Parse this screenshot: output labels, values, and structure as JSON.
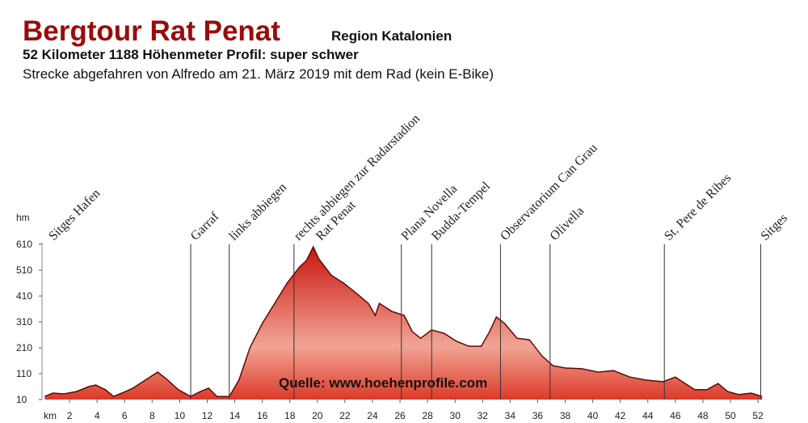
{
  "chart_data": {
    "type": "area",
    "title": "Bergtour Rat Penat",
    "subtitle": "Region Katalonien",
    "line2": "52 Kilometer  1188 Höhenmeter  Profil: super schwer",
    "line3": "Strecke abgefahren von Alfredo am 21. März 2019 mit dem Rad (kein E-Bike)",
    "source": "Quelle: www.hoehenprofile.com",
    "xlabel": "km",
    "ylabel": "hm",
    "color": "#c8150f",
    "xlim": [
      0,
      52.5
    ],
    "ylim": [
      10,
      610
    ],
    "xticks": [
      2,
      4,
      6,
      8,
      10,
      12,
      14,
      16,
      18,
      20,
      22,
      24,
      26,
      28,
      30,
      32,
      34,
      36,
      38,
      40,
      42,
      44,
      46,
      48,
      50,
      52
    ],
    "yticks": [
      10,
      110,
      210,
      310,
      410,
      510,
      610
    ],
    "x": [
      0.2,
      0.8,
      1.6,
      2.5,
      3.4,
      3.9,
      4.6,
      5.2,
      5.8,
      6.6,
      7.5,
      8.4,
      9.0,
      9.9,
      10.8,
      11.5,
      12.1,
      12.7,
      13.6,
      14.3,
      15.1,
      16.0,
      16.9,
      17.8,
      18.7,
      19.2,
      19.7,
      20.1,
      21.0,
      21.9,
      22.8,
      23.7,
      24.2,
      24.5,
      25.4,
      26.3,
      26.9,
      27.5,
      28.3,
      29.2,
      30.1,
      31.0,
      31.9,
      32.5,
      33.0,
      33.6,
      34.5,
      35.4,
      36.3,
      37.1,
      38.0,
      39.2,
      40.4,
      41.5,
      42.7,
      43.9,
      45.1,
      46.0,
      46.5,
      47.4,
      48.3,
      49.1,
      49.8,
      50.6,
      51.5,
      52.3
    ],
    "values": [
      22,
      35,
      32,
      41,
      60,
      66,
      48,
      22,
      35,
      54,
      85,
      116,
      91,
      48,
      22,
      41,
      54,
      22,
      22,
      85,
      210,
      304,
      382,
      460,
      522,
      547,
      600,
      554,
      491,
      460,
      422,
      382,
      335,
      382,
      351,
      335,
      272,
      247,
      279,
      266,
      235,
      216,
      216,
      272,
      329,
      304,
      247,
      241,
      179,
      141,
      132,
      129,
      116,
      122,
      97,
      85,
      79,
      97,
      79,
      48,
      48,
      72,
      41,
      29,
      35,
      22
    ],
    "annotations": [
      {
        "text": "Sitges Hafen",
        "x": 0.5,
        "line": false
      },
      {
        "text": "Garraf",
        "x": 10.8,
        "line": true
      },
      {
        "text": "links abbiegen",
        "x": 13.6,
        "line": true
      },
      {
        "text": "rechts abbiegen zur Radarstadion",
        "x": 18.3,
        "line": true
      },
      {
        "text": "Rat Penat",
        "x": 19.9,
        "line": false
      },
      {
        "text": "Plana Novella",
        "x": 26.1,
        "line": true
      },
      {
        "text": "Budda-Tempel",
        "x": 28.3,
        "line": true
      },
      {
        "text": "Observatorium Can Grau",
        "x": 33.3,
        "line": true
      },
      {
        "text": "Olivella",
        "x": 36.9,
        "line": true
      },
      {
        "text": "St. Pere de Ribes",
        "x": 45.2,
        "line": true
      },
      {
        "text": "Sitges",
        "x": 52.2,
        "line": true
      }
    ]
  }
}
